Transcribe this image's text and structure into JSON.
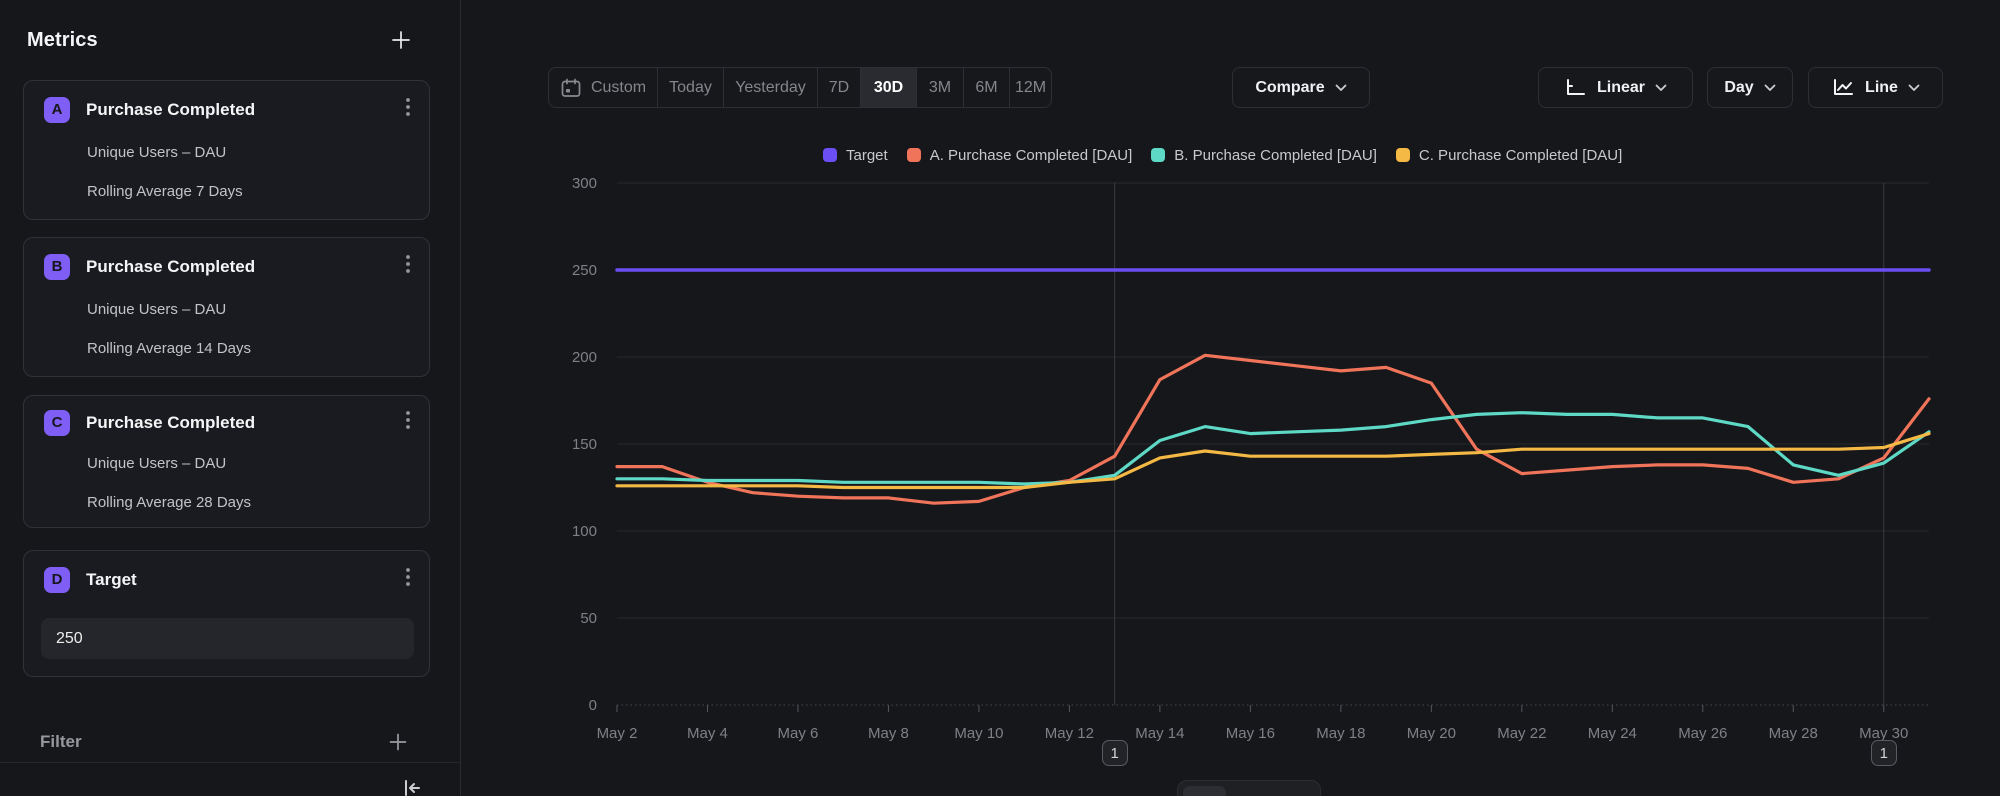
{
  "sidebar": {
    "title": "Metrics",
    "cards": [
      {
        "badge": "A",
        "title": "Purchase Completed",
        "line1": "Unique Users – DAU",
        "line2": "Rolling Average 7 Days"
      },
      {
        "badge": "B",
        "title": "Purchase Completed",
        "line1": "Unique Users – DAU",
        "line2": "Rolling Average 14 Days"
      },
      {
        "badge": "C",
        "title": "Purchase Completed",
        "line1": "Unique Users – DAU",
        "line2": "Rolling Average 28 Days"
      }
    ],
    "target_card": {
      "badge": "D",
      "title": "Target",
      "value": "250"
    },
    "filter_label": "Filter"
  },
  "toolbar": {
    "date_ranges": [
      "Custom",
      "Today",
      "Yesterday",
      "7D",
      "30D",
      "3M",
      "6M",
      "12M"
    ],
    "active_range": "30D",
    "compare_label": "Compare",
    "scale_label": "Linear",
    "granularity_label": "Day",
    "chart_type_label": "Line"
  },
  "chart_data": {
    "type": "line",
    "title": "",
    "x": [
      "May 2",
      "May 3",
      "May 4",
      "May 5",
      "May 6",
      "May 7",
      "May 8",
      "May 9",
      "May 10",
      "May 11",
      "May 12",
      "May 13",
      "May 14",
      "May 15",
      "May 16",
      "May 17",
      "May 18",
      "May 19",
      "May 20",
      "May 21",
      "May 22",
      "May 23",
      "May 24",
      "May 25",
      "May 26",
      "May 27",
      "May 28",
      "May 29",
      "May 30",
      "May 31"
    ],
    "x_tick_labels": [
      "May 2",
      "May 4",
      "May 6",
      "May 8",
      "May 10",
      "May 12",
      "May 14",
      "May 16",
      "May 18",
      "May 20",
      "May 22",
      "May 24",
      "May 26",
      "May 28",
      "May 30"
    ],
    "y_ticks": [
      0,
      50,
      100,
      150,
      200,
      250,
      300
    ],
    "ylim": [
      0,
      300
    ],
    "grid": "horizontal",
    "legend_position": "top-center",
    "series": [
      {
        "name": "Target",
        "color": "#6b4ff5",
        "type": "constant",
        "value": 250
      },
      {
        "name": "A. Purchase Completed [DAU]",
        "color": "#f0745a",
        "type": "line",
        "values": [
          137,
          137,
          128,
          122,
          120,
          119,
          119,
          116,
          117,
          125,
          129,
          143,
          187,
          201,
          198,
          195,
          192,
          194,
          185,
          147,
          133,
          135,
          137,
          138,
          138,
          136,
          128,
          130,
          142,
          176
        ]
      },
      {
        "name": "B. Purchase Completed [DAU]",
        "color": "#5ed9c6",
        "type": "line",
        "values": [
          130,
          130,
          129,
          129,
          129,
          128,
          128,
          128,
          128,
          127,
          128,
          132,
          152,
          160,
          156,
          157,
          158,
          160,
          164,
          167,
          168,
          167,
          167,
          165,
          165,
          160,
          138,
          132,
          139,
          157
        ]
      },
      {
        "name": "C. Purchase Completed [DAU]",
        "color": "#f4b844",
        "type": "line",
        "values": [
          126,
          126,
          126,
          126,
          126,
          125,
          125,
          125,
          125,
          125,
          128,
          130,
          142,
          146,
          143,
          143,
          143,
          143,
          144,
          145,
          147,
          147,
          147,
          147,
          147,
          147,
          147,
          147,
          148,
          156
        ]
      }
    ],
    "annotations": [
      {
        "x_label": "May 13",
        "count": "1"
      },
      {
        "x_label": "May 30",
        "count": "1"
      }
    ]
  }
}
